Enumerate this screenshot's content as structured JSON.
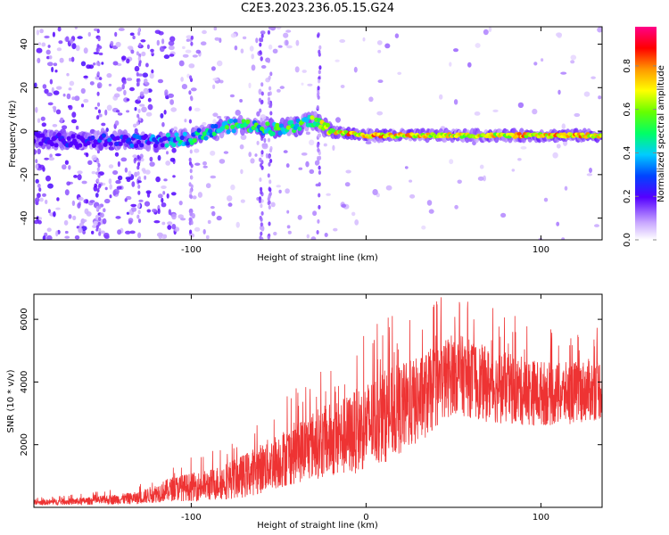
{
  "title": "C2E3.2023.236.05.15.G24",
  "chart_data": [
    {
      "type": "heatmap",
      "xlabel": "Height of straight line (km)",
      "ylabel": "Frequency (Hz)",
      "xlim": [
        -190,
        135
      ],
      "ylim": [
        -50,
        48
      ],
      "xticks": [
        -100,
        0,
        100
      ],
      "xtick_labels": [
        "-100",
        "",
        "100"
      ],
      "yticks": [
        -40,
        -20,
        0,
        20,
        40
      ],
      "yticks_labels": [
        "-40",
        "-20",
        "0",
        "20",
        "40"
      ],
      "colorbar": {
        "label": "Normalized spectral amplitude",
        "range": [
          0.0,
          0.98
        ],
        "ticks": [
          0.0,
          0.2,
          0.4,
          0.6,
          0.8
        ],
        "tick_labels": [
          "0.0",
          "0.2",
          "0.4",
          "0.6",
          "0.8"
        ]
      },
      "ridge": {
        "x": [
          -190,
          -165,
          -140,
          -120,
          -100,
          -80,
          -70,
          -55,
          -40,
          -30,
          -20,
          0,
          20,
          60,
          100,
          135
        ],
        "y": [
          -3,
          -5,
          -4,
          -5,
          -3,
          2,
          3,
          1,
          2,
          5,
          0,
          -2,
          -2,
          -2,
          -2,
          -2
        ],
        "amplitude": [
          0.2,
          0.25,
          0.3,
          0.35,
          0.5,
          0.55,
          0.55,
          0.55,
          0.6,
          0.65,
          0.8,
          0.85,
          0.8,
          0.75,
          0.85,
          0.8
        ]
      }
    },
    {
      "type": "line",
      "xlabel": "Height of straight line (km)",
      "ylabel": "SNR (10 * v/v)",
      "xlim": [
        -190,
        135
      ],
      "ylim": [
        0,
        6800
      ],
      "xticks": [
        -100,
        0,
        100
      ],
      "xtick_labels": [
        "-100",
        "0",
        "100"
      ],
      "yticks": [
        2000,
        4000,
        6000
      ],
      "ytick_labels": [
        "2000",
        "4000",
        "6000"
      ],
      "series": [
        {
          "color": "#ee3333",
          "envelope_x": [
            -190,
            -160,
            -130,
            -110,
            -90,
            -70,
            -50,
            -30,
            -10,
            10,
            30,
            50,
            70,
            90,
            110,
            135
          ],
          "envelope_mean": [
            150,
            200,
            300,
            600,
            700,
            1000,
            1500,
            2000,
            2300,
            2900,
            3400,
            4300,
            3900,
            3700,
            3600,
            3800
          ],
          "envelope_spread": [
            80,
            120,
            200,
            400,
            500,
            700,
            900,
            1100,
            1300,
            1500,
            1400,
            1300,
            1200,
            1100,
            1000,
            1000
          ]
        }
      ]
    }
  ]
}
